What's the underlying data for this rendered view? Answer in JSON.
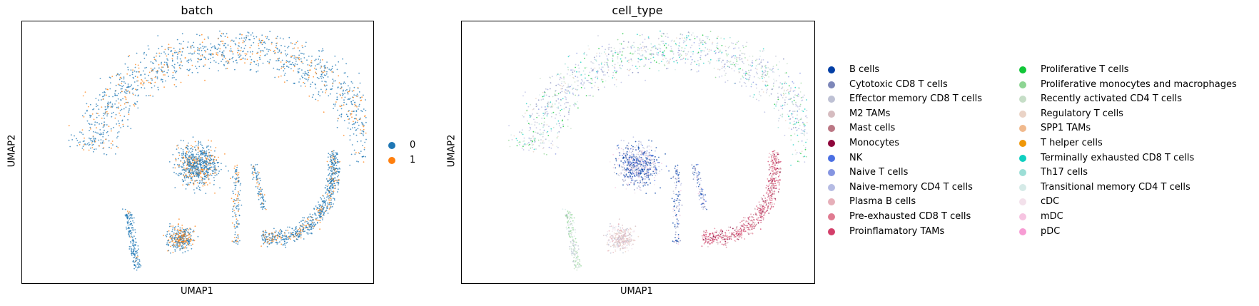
{
  "chart_data": [
    {
      "type": "scatter",
      "title": "batch",
      "xlabel": "UMAP1",
      "ylabel": "UMAP2",
      "legend_position": "right",
      "grid": false,
      "series": [
        {
          "name": "0",
          "color": "#1f77b4"
        },
        {
          "name": "1",
          "color": "#ff7f0e"
        }
      ]
    },
    {
      "type": "scatter",
      "title": "cell_type",
      "xlabel": "UMAP1",
      "ylabel": "UMAP2",
      "legend_position": "right",
      "grid": false,
      "series": [
        {
          "name": "B cells",
          "color": "#023fa5"
        },
        {
          "name": "Cytotoxic CD8 T cells",
          "color": "#7d87b9"
        },
        {
          "name": "Effector memory CD8 T cells",
          "color": "#bec1d4"
        },
        {
          "name": "M2 TAMs",
          "color": "#d6bcc0"
        },
        {
          "name": "Mast cells",
          "color": "#bb7784"
        },
        {
          "name": "Monocytes",
          "color": "#8e063b"
        },
        {
          "name": "NK",
          "color": "#4a6fe3"
        },
        {
          "name": "Naive T cells",
          "color": "#8595e1"
        },
        {
          "name": "Naive-memory CD4 T cells",
          "color": "#b5bbe3"
        },
        {
          "name": "Plasma B cells",
          "color": "#e6afb9"
        },
        {
          "name": "Pre-exhausted CD8 T cells",
          "color": "#e07b91"
        },
        {
          "name": "Proinflamatory TAMs",
          "color": "#d33f6a"
        },
        {
          "name": "Proliferative T cells",
          "color": "#11c638"
        },
        {
          "name": "Proliferative monocytes and macrophages",
          "color": "#8dd593"
        },
        {
          "name": "Recently activated CD4 T cells",
          "color": "#c6dec7"
        },
        {
          "name": "Regulatory T cells",
          "color": "#ead3c6"
        },
        {
          "name": "SPP1 TAMs",
          "color": "#f0b98d"
        },
        {
          "name": "T helper cells",
          "color": "#ef9708"
        },
        {
          "name": "Terminally exhausted CD8 T cells",
          "color": "#0fcfc0"
        },
        {
          "name": "Th17 cells",
          "color": "#9cded6"
        },
        {
          "name": "Transitional memory CD4 T cells",
          "color": "#d5eae7"
        },
        {
          "name": "cDC",
          "color": "#f3e1eb"
        },
        {
          "name": "mDC",
          "color": "#f6c4e1"
        },
        {
          "name": "pDC",
          "color": "#f79cd4"
        }
      ]
    }
  ]
}
